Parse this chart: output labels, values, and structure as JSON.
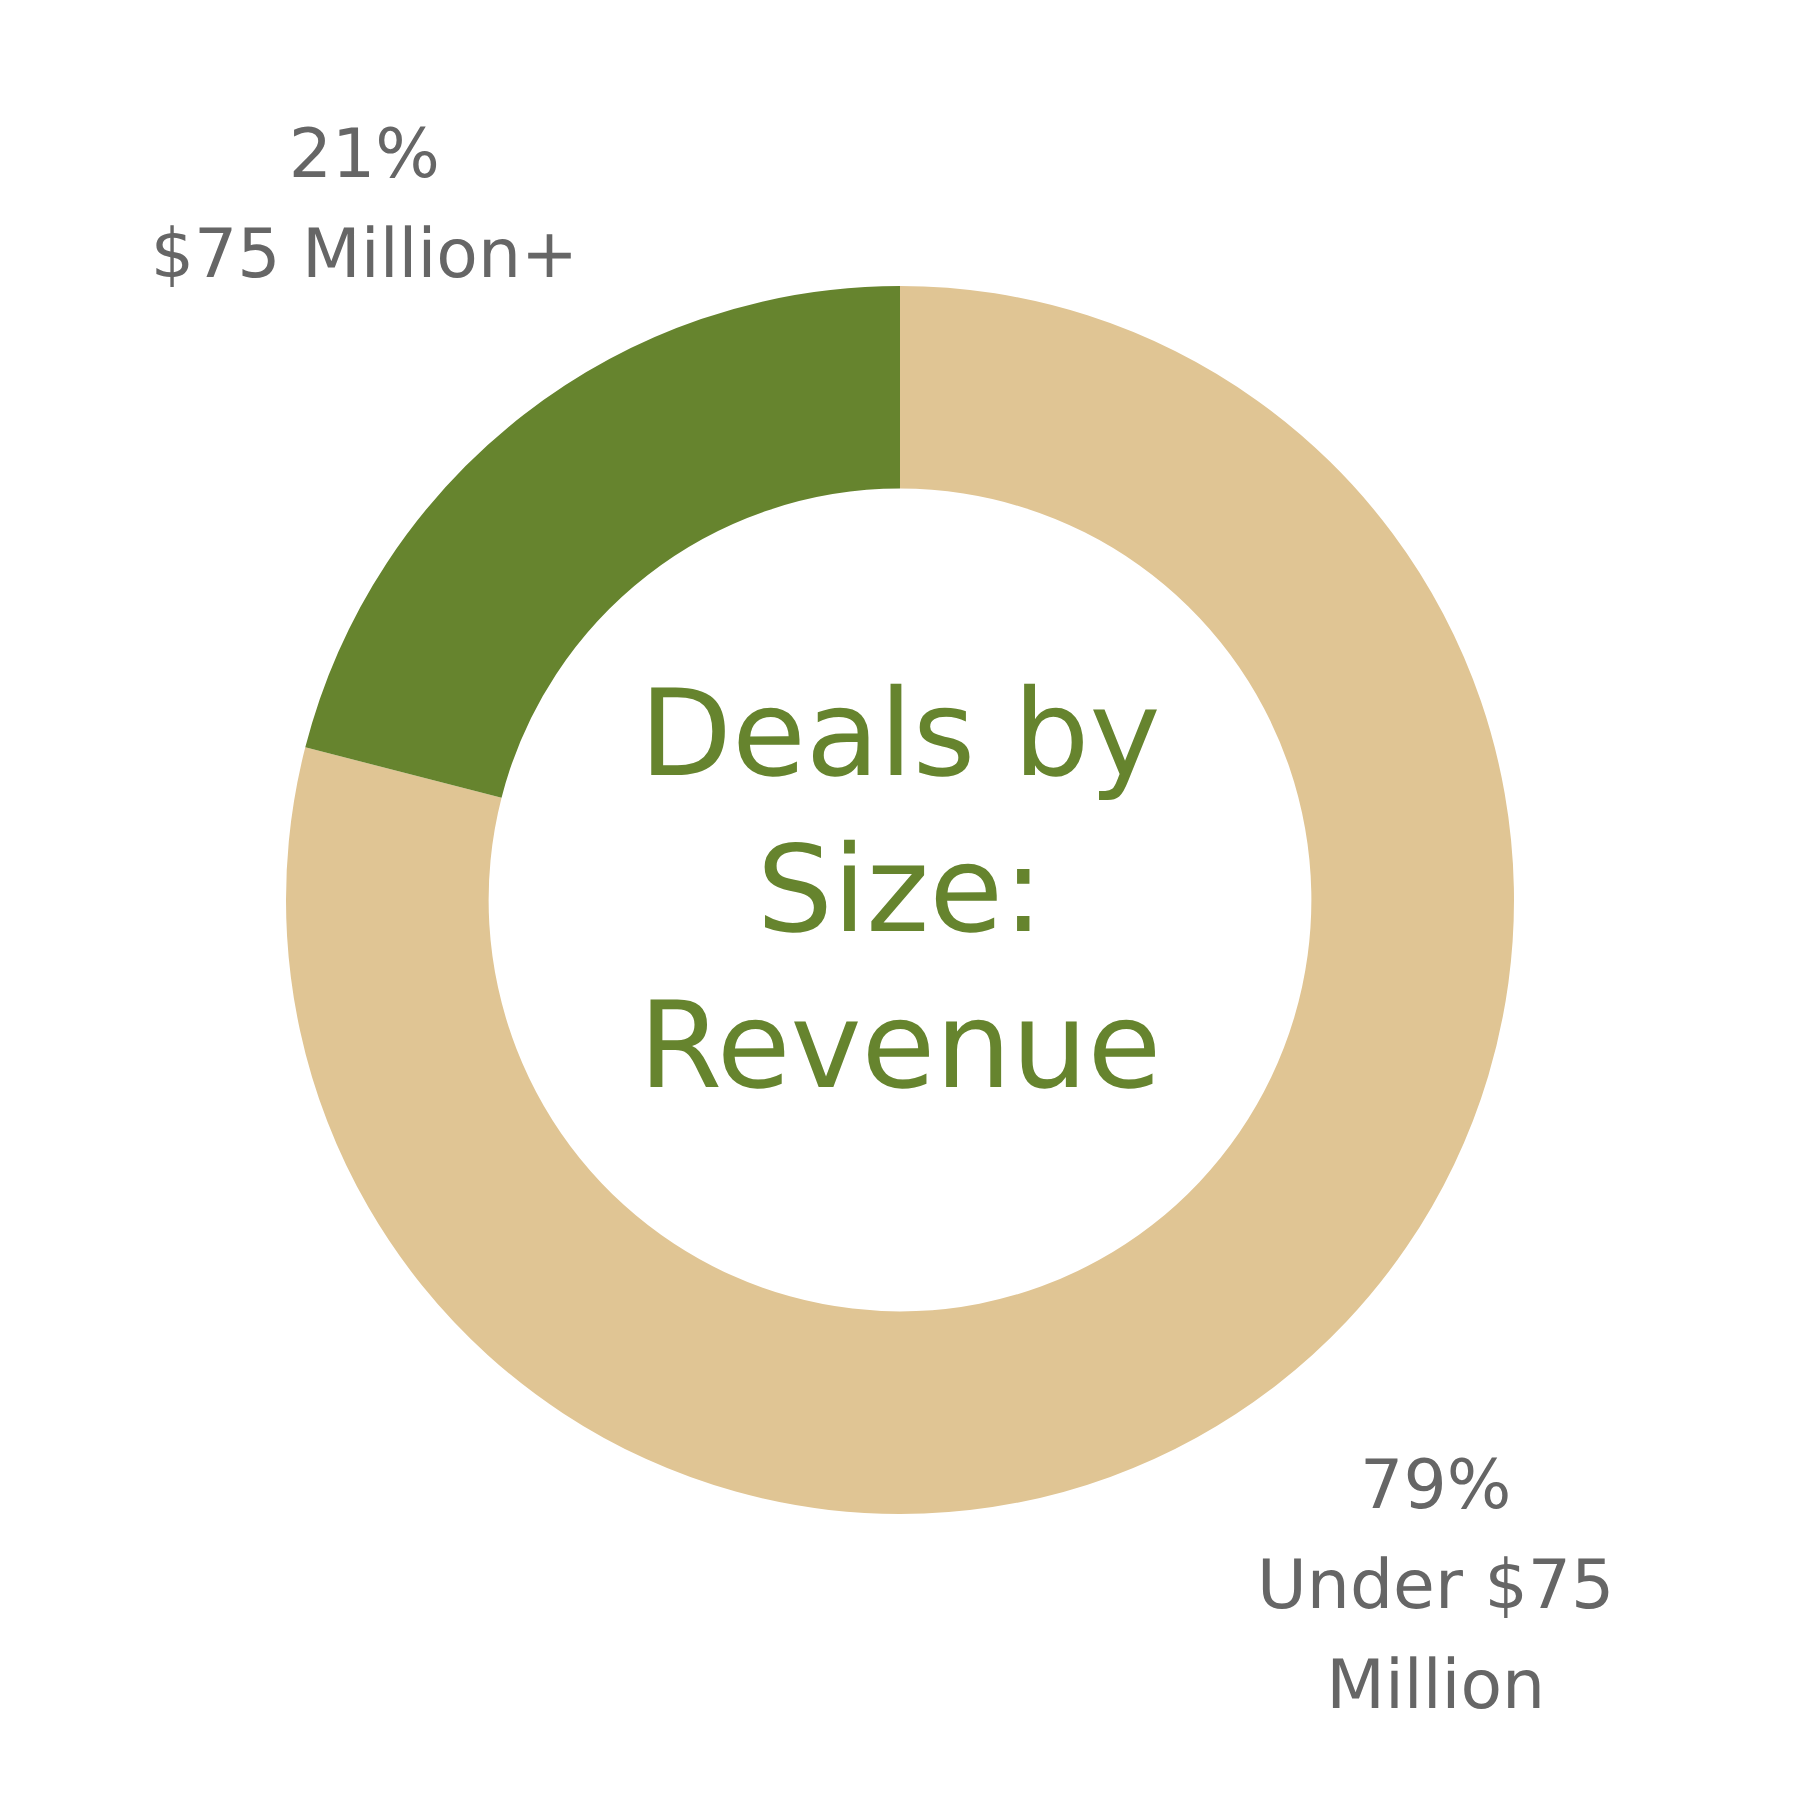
{
  "chart_data": {
    "type": "donut",
    "title": "Deals by Size: Revenue",
    "categories": [
      "Under $75 Million",
      "$75 Million+"
    ],
    "values": [
      79,
      21
    ],
    "colors": [
      "#e0c594",
      "#66842e"
    ],
    "value_labels": [
      "79%",
      "21%"
    ],
    "legend": false
  }
}
